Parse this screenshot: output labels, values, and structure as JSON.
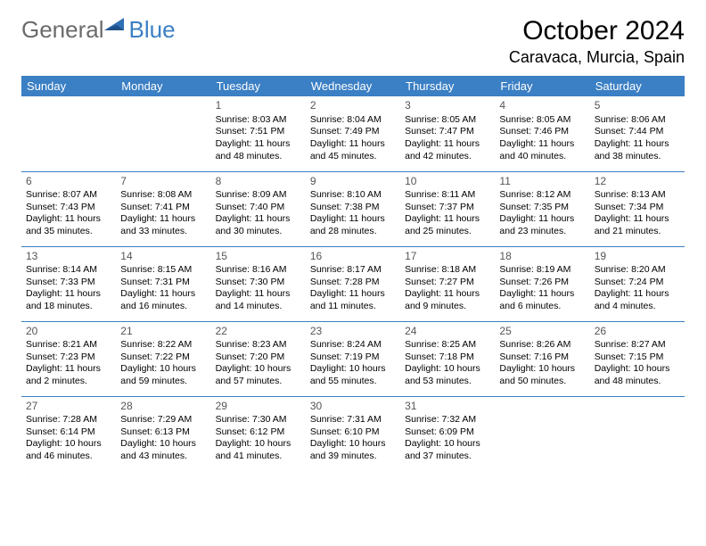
{
  "logo": {
    "part1": "General",
    "part2": "Blue"
  },
  "title": "October 2024",
  "location": "Caravaca, Murcia, Spain",
  "colors": {
    "header_bg": "#3b7fc4",
    "header_text": "#ffffff",
    "logo_gray": "#6b6b6b",
    "logo_blue": "#3b7fc4",
    "row_border": "#3b7fc4"
  },
  "days_of_week": [
    "Sunday",
    "Monday",
    "Tuesday",
    "Wednesday",
    "Thursday",
    "Friday",
    "Saturday"
  ],
  "weeks": [
    [
      null,
      null,
      {
        "n": "1",
        "sr": "Sunrise: 8:03 AM",
        "ss": "Sunset: 7:51 PM",
        "dl1": "Daylight: 11 hours",
        "dl2": "and 48 minutes."
      },
      {
        "n": "2",
        "sr": "Sunrise: 8:04 AM",
        "ss": "Sunset: 7:49 PM",
        "dl1": "Daylight: 11 hours",
        "dl2": "and 45 minutes."
      },
      {
        "n": "3",
        "sr": "Sunrise: 8:05 AM",
        "ss": "Sunset: 7:47 PM",
        "dl1": "Daylight: 11 hours",
        "dl2": "and 42 minutes."
      },
      {
        "n": "4",
        "sr": "Sunrise: 8:05 AM",
        "ss": "Sunset: 7:46 PM",
        "dl1": "Daylight: 11 hours",
        "dl2": "and 40 minutes."
      },
      {
        "n": "5",
        "sr": "Sunrise: 8:06 AM",
        "ss": "Sunset: 7:44 PM",
        "dl1": "Daylight: 11 hours",
        "dl2": "and 38 minutes."
      }
    ],
    [
      {
        "n": "6",
        "sr": "Sunrise: 8:07 AM",
        "ss": "Sunset: 7:43 PM",
        "dl1": "Daylight: 11 hours",
        "dl2": "and 35 minutes."
      },
      {
        "n": "7",
        "sr": "Sunrise: 8:08 AM",
        "ss": "Sunset: 7:41 PM",
        "dl1": "Daylight: 11 hours",
        "dl2": "and 33 minutes."
      },
      {
        "n": "8",
        "sr": "Sunrise: 8:09 AM",
        "ss": "Sunset: 7:40 PM",
        "dl1": "Daylight: 11 hours",
        "dl2": "and 30 minutes."
      },
      {
        "n": "9",
        "sr": "Sunrise: 8:10 AM",
        "ss": "Sunset: 7:38 PM",
        "dl1": "Daylight: 11 hours",
        "dl2": "and 28 minutes."
      },
      {
        "n": "10",
        "sr": "Sunrise: 8:11 AM",
        "ss": "Sunset: 7:37 PM",
        "dl1": "Daylight: 11 hours",
        "dl2": "and 25 minutes."
      },
      {
        "n": "11",
        "sr": "Sunrise: 8:12 AM",
        "ss": "Sunset: 7:35 PM",
        "dl1": "Daylight: 11 hours",
        "dl2": "and 23 minutes."
      },
      {
        "n": "12",
        "sr": "Sunrise: 8:13 AM",
        "ss": "Sunset: 7:34 PM",
        "dl1": "Daylight: 11 hours",
        "dl2": "and 21 minutes."
      }
    ],
    [
      {
        "n": "13",
        "sr": "Sunrise: 8:14 AM",
        "ss": "Sunset: 7:33 PM",
        "dl1": "Daylight: 11 hours",
        "dl2": "and 18 minutes."
      },
      {
        "n": "14",
        "sr": "Sunrise: 8:15 AM",
        "ss": "Sunset: 7:31 PM",
        "dl1": "Daylight: 11 hours",
        "dl2": "and 16 minutes."
      },
      {
        "n": "15",
        "sr": "Sunrise: 8:16 AM",
        "ss": "Sunset: 7:30 PM",
        "dl1": "Daylight: 11 hours",
        "dl2": "and 14 minutes."
      },
      {
        "n": "16",
        "sr": "Sunrise: 8:17 AM",
        "ss": "Sunset: 7:28 PM",
        "dl1": "Daylight: 11 hours",
        "dl2": "and 11 minutes."
      },
      {
        "n": "17",
        "sr": "Sunrise: 8:18 AM",
        "ss": "Sunset: 7:27 PM",
        "dl1": "Daylight: 11 hours",
        "dl2": "and 9 minutes."
      },
      {
        "n": "18",
        "sr": "Sunrise: 8:19 AM",
        "ss": "Sunset: 7:26 PM",
        "dl1": "Daylight: 11 hours",
        "dl2": "and 6 minutes."
      },
      {
        "n": "19",
        "sr": "Sunrise: 8:20 AM",
        "ss": "Sunset: 7:24 PM",
        "dl1": "Daylight: 11 hours",
        "dl2": "and 4 minutes."
      }
    ],
    [
      {
        "n": "20",
        "sr": "Sunrise: 8:21 AM",
        "ss": "Sunset: 7:23 PM",
        "dl1": "Daylight: 11 hours",
        "dl2": "and 2 minutes."
      },
      {
        "n": "21",
        "sr": "Sunrise: 8:22 AM",
        "ss": "Sunset: 7:22 PM",
        "dl1": "Daylight: 10 hours",
        "dl2": "and 59 minutes."
      },
      {
        "n": "22",
        "sr": "Sunrise: 8:23 AM",
        "ss": "Sunset: 7:20 PM",
        "dl1": "Daylight: 10 hours",
        "dl2": "and 57 minutes."
      },
      {
        "n": "23",
        "sr": "Sunrise: 8:24 AM",
        "ss": "Sunset: 7:19 PM",
        "dl1": "Daylight: 10 hours",
        "dl2": "and 55 minutes."
      },
      {
        "n": "24",
        "sr": "Sunrise: 8:25 AM",
        "ss": "Sunset: 7:18 PM",
        "dl1": "Daylight: 10 hours",
        "dl2": "and 53 minutes."
      },
      {
        "n": "25",
        "sr": "Sunrise: 8:26 AM",
        "ss": "Sunset: 7:16 PM",
        "dl1": "Daylight: 10 hours",
        "dl2": "and 50 minutes."
      },
      {
        "n": "26",
        "sr": "Sunrise: 8:27 AM",
        "ss": "Sunset: 7:15 PM",
        "dl1": "Daylight: 10 hours",
        "dl2": "and 48 minutes."
      }
    ],
    [
      {
        "n": "27",
        "sr": "Sunrise: 7:28 AM",
        "ss": "Sunset: 6:14 PM",
        "dl1": "Daylight: 10 hours",
        "dl2": "and 46 minutes."
      },
      {
        "n": "28",
        "sr": "Sunrise: 7:29 AM",
        "ss": "Sunset: 6:13 PM",
        "dl1": "Daylight: 10 hours",
        "dl2": "and 43 minutes."
      },
      {
        "n": "29",
        "sr": "Sunrise: 7:30 AM",
        "ss": "Sunset: 6:12 PM",
        "dl1": "Daylight: 10 hours",
        "dl2": "and 41 minutes."
      },
      {
        "n": "30",
        "sr": "Sunrise: 7:31 AM",
        "ss": "Sunset: 6:10 PM",
        "dl1": "Daylight: 10 hours",
        "dl2": "and 39 minutes."
      },
      {
        "n": "31",
        "sr": "Sunrise: 7:32 AM",
        "ss": "Sunset: 6:09 PM",
        "dl1": "Daylight: 10 hours",
        "dl2": "and 37 minutes."
      },
      null,
      null
    ]
  ]
}
